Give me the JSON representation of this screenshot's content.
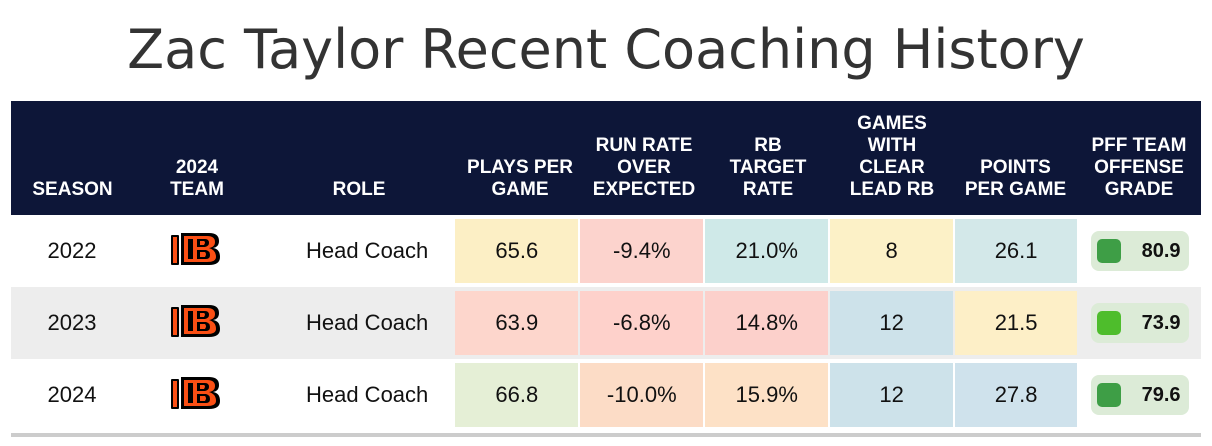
{
  "title": "Zac Taylor Recent Coaching History",
  "headers": [
    "SEASON",
    "2024\nTEAM",
    "ROLE",
    "PLAYS PER\nGAME",
    "RUN RATE\nOVER\nEXPECTED",
    "RB\nTARGET\nRATE",
    "GAMES\nWITH\nCLEAR\nLEAD RB",
    "POINTS\nPER GAME",
    "PFF TEAM\nOFFENSE\nGRADE"
  ],
  "team_logo_icon": "bengals-logo-icon",
  "rows": [
    {
      "season": "2022",
      "role": "Head Coach",
      "plays_per_game": "65.6",
      "run_rate_over_expected": "-9.4%",
      "rb_target_rate": "21.0%",
      "games_clear_lead_rb": "8",
      "points_per_game": "26.1",
      "pff_grade": "80.9",
      "colors": {
        "plays": "#fcefc5",
        "rroe": "#fcd3cd",
        "rbtr": "#cfe9e8",
        "games": "#fcf1c7",
        "points": "#d3e8e9",
        "grade_bg": "#dcebd7",
        "grade_square": "#3e9e46"
      }
    },
    {
      "season": "2023",
      "role": "Head Coach",
      "plays_per_game": "63.9",
      "run_rate_over_expected": "-6.8%",
      "rb_target_rate": "14.8%",
      "games_clear_lead_rb": "12",
      "points_per_game": "21.5",
      "pff_grade": "73.9",
      "colors": {
        "plays": "#fdd6cc",
        "rroe": "#fed1cb",
        "rbtr": "#fcd0cb",
        "games": "#cde2ea",
        "points": "#fdefc7",
        "grade_bg": "#dcebd7",
        "grade_square": "#4ebd2c"
      }
    },
    {
      "season": "2024",
      "role": "Head Coach",
      "plays_per_game": "66.8",
      "run_rate_over_expected": "-10.0%",
      "rb_target_rate": "15.9%",
      "games_clear_lead_rb": "12",
      "points_per_game": "27.8",
      "pff_grade": "79.6",
      "colors": {
        "plays": "#e5efd6",
        "rroe": "#fcdcc6",
        "rbtr": "#fde1c6",
        "games": "#cde2ea",
        "points": "#cfe2ec",
        "grade_bg": "#dcebd7",
        "grade_square": "#3e9e46"
      }
    }
  ],
  "logo_colors": {
    "orange": "#fb4f14",
    "black": "#000000"
  }
}
